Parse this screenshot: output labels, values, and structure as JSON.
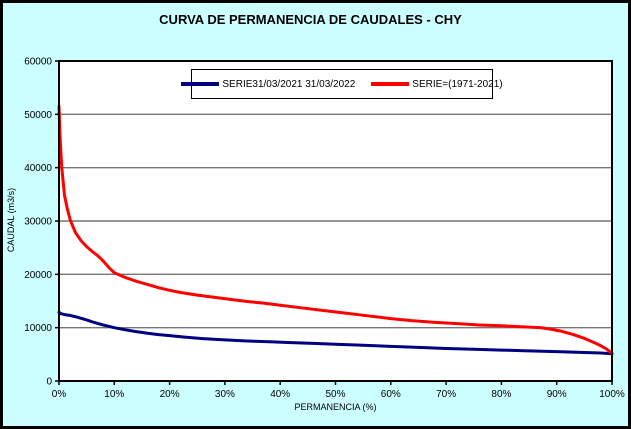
{
  "chart_data": {
    "type": "line",
    "title": "CURVA DE PERMANENCIA DE CAUDALES - CHY",
    "xlabel": "PERMANENCIA (%)",
    "ylabel": "CAUDAL (m3/s)",
    "xlim": [
      0,
      100
    ],
    "ylim": [
      0,
      60000
    ],
    "x_ticks": [
      0,
      10,
      20,
      30,
      40,
      50,
      60,
      70,
      80,
      90,
      100
    ],
    "x_tick_labels": [
      "0%",
      "10%",
      "20%",
      "30%",
      "40%",
      "50%",
      "60%",
      "70%",
      "80%",
      "90%",
      "100%"
    ],
    "y_ticks": [
      0,
      10000,
      20000,
      30000,
      40000,
      50000,
      60000
    ],
    "y_tick_labels": [
      "0",
      "10000",
      "20000",
      "30000",
      "40000",
      "50000",
      "60000"
    ],
    "grid": "horizontal-only",
    "legend_position": "top-center-inside",
    "colors": {
      "background": "#CCFFFF",
      "plot_background": "#FFFFFF",
      "gridline": "#757575",
      "axis": "#000000"
    },
    "series": [
      {
        "name": "SERIE31/03/2021 31/03/2022",
        "color": "#000080",
        "x": [
          0,
          0.3,
          1,
          2,
          3,
          4,
          5,
          6,
          7,
          8,
          9,
          10,
          12,
          14,
          16,
          18,
          20,
          23,
          26,
          30,
          34,
          38,
          42,
          46,
          50,
          55,
          60,
          65,
          70,
          75,
          80,
          85,
          90,
          95,
          98,
          100
        ],
        "y": [
          12900,
          12650,
          12450,
          12300,
          12050,
          11750,
          11450,
          11100,
          10800,
          10500,
          10250,
          10000,
          9600,
          9250,
          8950,
          8700,
          8500,
          8200,
          7950,
          7700,
          7500,
          7350,
          7200,
          7050,
          6900,
          6700,
          6500,
          6300,
          6100,
          5950,
          5800,
          5650,
          5500,
          5350,
          5250,
          5100
        ]
      },
      {
        "name": "SERIE=(1971-2021)",
        "color": "#FF0000",
        "x": [
          0,
          0.2,
          0.5,
          1,
          1.5,
          2,
          2.5,
          3,
          4,
          5,
          6,
          7,
          8,
          9,
          10,
          12,
          14,
          16,
          18,
          20,
          22,
          25,
          28,
          31,
          34,
          37,
          40,
          44,
          48,
          52,
          56,
          60,
          64,
          68,
          72,
          76,
          80,
          84,
          87,
          89,
          91,
          93,
          95,
          97,
          98,
          99,
          100
        ],
        "y": [
          51500,
          45500,
          40000,
          34800,
          32300,
          30300,
          29000,
          27800,
          26300,
          25200,
          24300,
          23500,
          22500,
          21300,
          20300,
          19400,
          18700,
          18100,
          17500,
          17000,
          16600,
          16100,
          15700,
          15300,
          14900,
          14600,
          14200,
          13700,
          13200,
          12700,
          12200,
          11700,
          11300,
          11000,
          10750,
          10500,
          10350,
          10150,
          10000,
          9700,
          9300,
          8700,
          8000,
          7100,
          6600,
          6000,
          5200
        ]
      }
    ]
  }
}
